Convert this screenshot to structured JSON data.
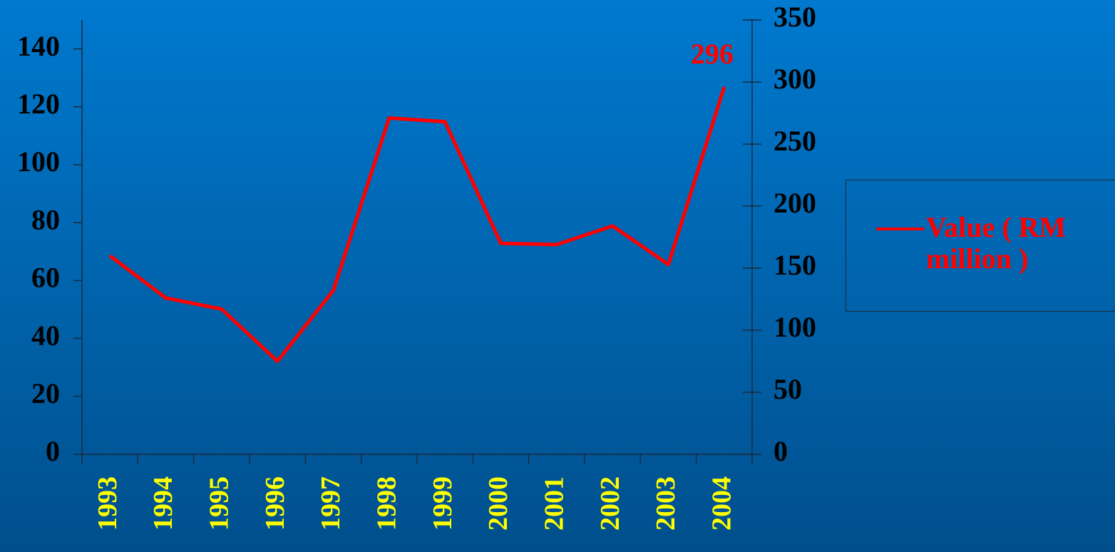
{
  "chart_data": {
    "type": "line",
    "categories": [
      "1993",
      "1994",
      "1995",
      "1996",
      "1997",
      "1998",
      "1999",
      "2000",
      "2001",
      "2002",
      "2003",
      "2004"
    ],
    "series": [
      {
        "name": "Value ( RM million )",
        "color": "#ff0000",
        "axis": "y2",
        "values": [
          160,
          126,
          117,
          75,
          132,
          271,
          268,
          170,
          169,
          184,
          153,
          296
        ]
      }
    ],
    "ylim": [
      0,
      150
    ],
    "yticks": [
      0,
      20,
      40,
      60,
      80,
      100,
      120,
      140
    ],
    "y2lim": [
      0,
      350
    ],
    "y2ticks": [
      0,
      50,
      100,
      150,
      200,
      250,
      300,
      350
    ],
    "legend": "right"
  }
}
